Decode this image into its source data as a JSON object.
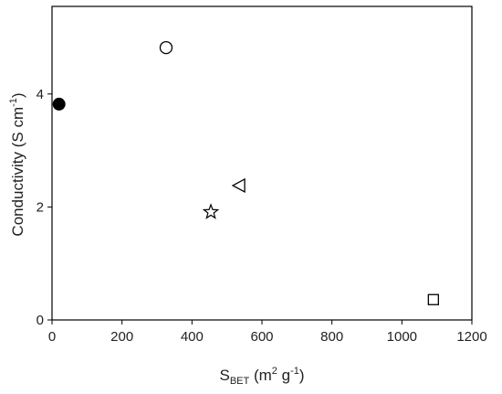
{
  "chart_data": {
    "type": "scatter",
    "x_label": [
      "S",
      "BET",
      " (m",
      "2",
      " g",
      "-1",
      ")"
    ],
    "y_label": [
      "Conductivity (S cm",
      "-1",
      ")"
    ],
    "series": [
      {
        "marker": "filled-circle",
        "color": "#000000",
        "x": [
          20
        ],
        "values": [
          3.82
        ]
      },
      {
        "marker": "circle",
        "color": "#000000",
        "x": [
          326
        ],
        "values": [
          4.82
        ]
      },
      {
        "marker": "left-triangle",
        "color": "#000000",
        "x": [
          535
        ],
        "values": [
          2.38
        ]
      },
      {
        "marker": "star",
        "color": "#000000",
        "x": [
          454
        ],
        "values": [
          1.91
        ]
      },
      {
        "marker": "square",
        "color": "#000000",
        "x": [
          1090
        ],
        "values": [
          0.36
        ]
      }
    ],
    "xlim": [
      0,
      1200
    ],
    "xticks": [
      0,
      200,
      400,
      600,
      800,
      1000,
      1200
    ],
    "ylim": [
      0,
      5.55
    ],
    "yticks": [
      0,
      2,
      4
    ]
  }
}
